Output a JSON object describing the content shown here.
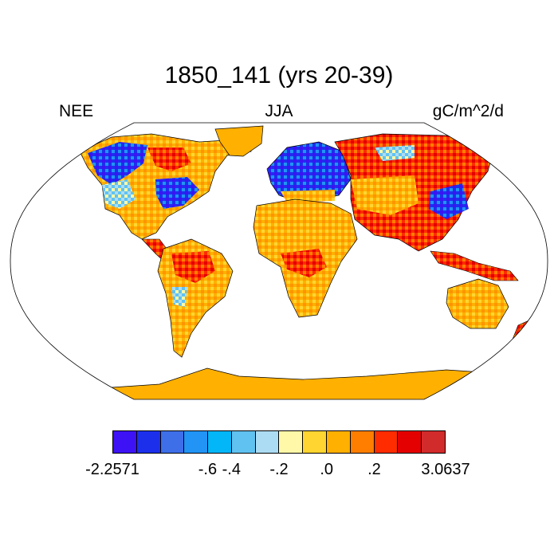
{
  "title": "1850_141 (yrs 20-39)",
  "left_label": "NEE",
  "center_label": "JJA",
  "right_label": "gC/m^2/d",
  "palette": [
    "#3d12f5",
    "#1c30ec",
    "#3e6fe8",
    "#2194f5",
    "#03b6f8",
    "#60c2f0",
    "#acdcf3",
    "#fff8a8",
    "#ffd531",
    "#ffb000",
    "#ff7e00",
    "#ff2c00",
    "#e40000",
    "#d22b2b"
  ],
  "colorbar_labels": [
    "-2.2571",
    "-.6",
    "-.4",
    "-.2",
    ".0",
    ".2",
    "3.0637"
  ],
  "map": {
    "projection": "Robinson",
    "field": "NEE",
    "season": "JJA",
    "ocean_color": "#ffffff",
    "antarctica_color": "#ffb000"
  }
}
